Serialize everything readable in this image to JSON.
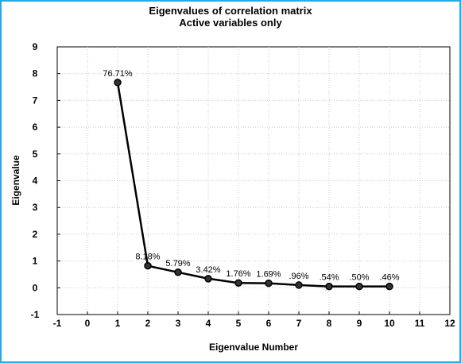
{
  "chart_data": {
    "type": "line",
    "title": "Eigenvalues of correlation matrix",
    "subtitle": "Active variables only",
    "xlabel": "Eigenvalue Number",
    "ylabel": "Eigenvalue",
    "xlim": [
      -1,
      12
    ],
    "ylim": [
      -1,
      9
    ],
    "x_ticks": [
      "-1",
      "0",
      "1",
      "2",
      "3",
      "4",
      "5",
      "6",
      "7",
      "8",
      "9",
      "10",
      "11",
      "12"
    ],
    "y_ticks": [
      "-1",
      "0",
      "1",
      "2",
      "3",
      "4",
      "5",
      "6",
      "7",
      "8",
      "9"
    ],
    "x": [
      1,
      2,
      3,
      4,
      5,
      6,
      7,
      8,
      9,
      10
    ],
    "values": [
      7.67,
      0.82,
      0.58,
      0.34,
      0.18,
      0.17,
      0.1,
      0.05,
      0.05,
      0.05
    ],
    "point_labels": [
      "76.71%",
      "8.18%",
      "5.79%",
      "3.42%",
      "1.76%",
      "1.69%",
      ".96%",
      ".54%",
      ".50%",
      ".46%"
    ],
    "grid": true,
    "colors": {
      "frame": "#29a9e1",
      "line": "#000000",
      "grid": "#c8c8c8"
    }
  }
}
